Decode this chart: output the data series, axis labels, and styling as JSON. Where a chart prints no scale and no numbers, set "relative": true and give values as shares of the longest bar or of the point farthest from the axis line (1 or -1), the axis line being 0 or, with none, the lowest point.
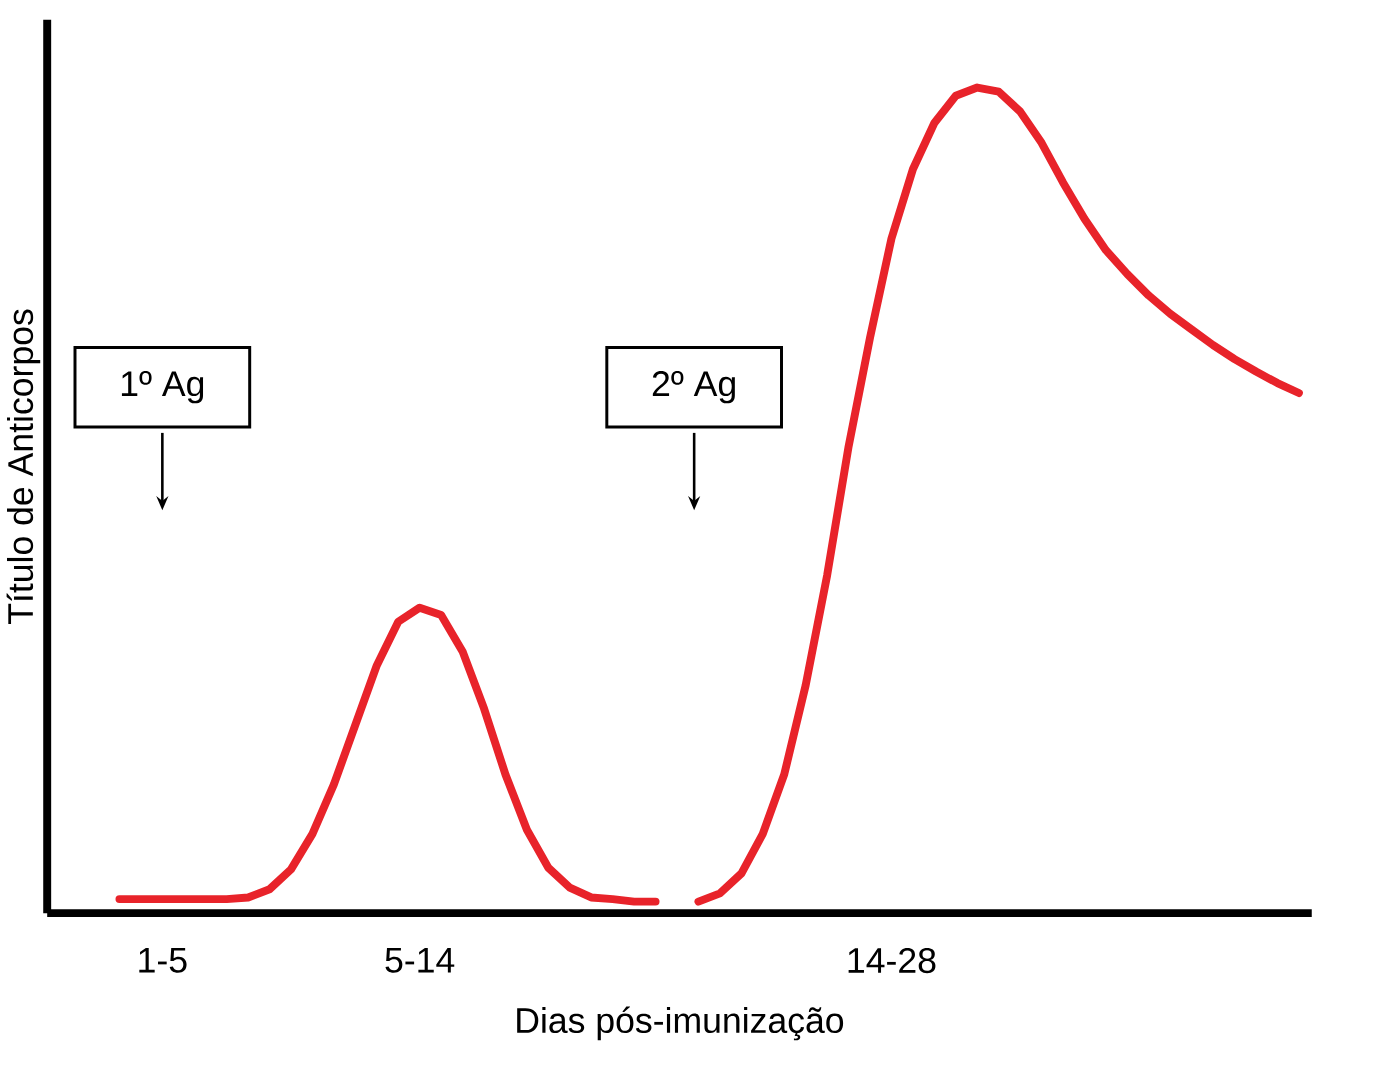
{
  "chart_data": {
    "type": "line",
    "relative": true,
    "xlabel": "Dias pós-imunização",
    "ylabel": "Título de Anticorpos",
    "categories": [
      null,
      null,
      "1-5",
      null,
      null,
      null,
      null,
      null,
      null,
      null,
      null,
      null,
      null,
      null,
      "5-14",
      null,
      null,
      null,
      null,
      null,
      null,
      null,
      null,
      null,
      null,
      null,
      null,
      null,
      null,
      null,
      null,
      null,
      null,
      null,
      null,
      null,
      "14-28",
      null,
      null,
      null,
      null,
      null,
      null,
      null,
      null,
      null,
      null,
      null,
      null,
      null,
      null,
      null,
      null,
      null,
      null,
      null
    ],
    "series": [
      {
        "color": "#e8232a",
        "values": [
          0.017,
          0.017,
          0.017,
          0.017,
          0.017,
          0.017,
          0.019,
          0.029,
          0.053,
          0.096,
          0.156,
          0.228,
          0.3,
          0.353,
          0.37,
          0.361,
          0.317,
          0.248,
          0.168,
          0.101,
          0.055,
          0.031,
          0.019,
          0.017,
          0.014,
          0.014,
          null,
          0.014,
          0.024,
          0.048,
          0.096,
          0.168,
          0.276,
          0.409,
          0.565,
          0.697,
          0.817,
          0.901,
          0.957,
          0.99,
          1,
          0.995,
          0.971,
          0.933,
          0.885,
          0.841,
          0.803,
          0.774,
          0.748,
          0.726,
          0.707,
          0.688,
          0.671,
          0.656,
          0.642,
          0.63
        ]
      }
    ],
    "annotations": [
      "1º Ag",
      "2º Ag"
    ]
  }
}
